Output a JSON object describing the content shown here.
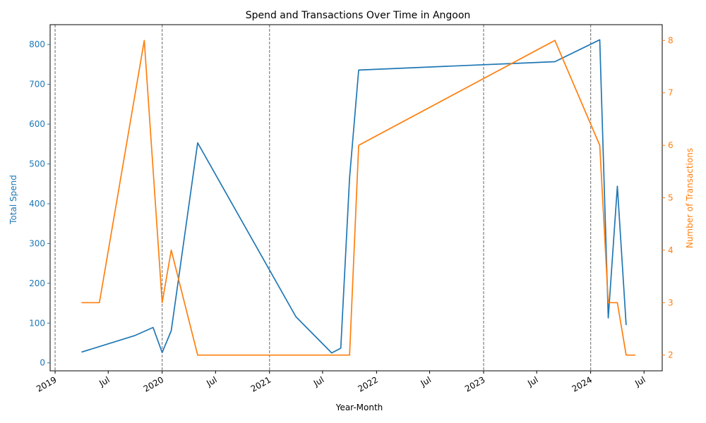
{
  "chart_data": {
    "type": "line",
    "title": "Spend and Transactions Over Time in Angoon",
    "xlabel": "Year-Month",
    "ylabel_left": "Total Spend",
    "ylabel_right": "Number of Transactions",
    "xlim": [
      "2018-12-15",
      "2024-09-01"
    ],
    "ylim_left": [
      -20,
      850
    ],
    "ylim_right": [
      1.7,
      8.3
    ],
    "yticks_left": [
      0,
      100,
      200,
      300,
      400,
      500,
      600,
      700,
      800
    ],
    "yticks_right": [
      2,
      3,
      4,
      5,
      6,
      7,
      8
    ],
    "x_ticks": [
      {
        "date": "2019-01-01",
        "label": "2019"
      },
      {
        "date": "2019-07-01",
        "label": "Jul"
      },
      {
        "date": "2020-01-01",
        "label": "2020"
      },
      {
        "date": "2020-07-01",
        "label": "Jul"
      },
      {
        "date": "2021-01-01",
        "label": "2021"
      },
      {
        "date": "2021-07-01",
        "label": "Jul"
      },
      {
        "date": "2022-01-01",
        "label": "2022"
      },
      {
        "date": "2022-07-01",
        "label": "Jul"
      },
      {
        "date": "2023-01-01",
        "label": "2023"
      },
      {
        "date": "2023-07-01",
        "label": "Jul"
      },
      {
        "date": "2024-01-01",
        "label": "2024"
      },
      {
        "date": "2024-07-01",
        "label": "Jul"
      }
    ],
    "year_lines": [
      "2019-01-01",
      "2020-01-01",
      "2021-01-01",
      "2023-01-01",
      "2024-01-01"
    ],
    "grid": false,
    "colors": {
      "spend": "#1f77b4",
      "transactions": "#ff7f0e",
      "year_line": "#808080"
    },
    "series": [
      {
        "axis": "left",
        "x": [
          "2019-04-01",
          "2019-10-01",
          "2019-12-01",
          "2020-01-01",
          "2020-02-01",
          "2020-05-01",
          "2021-04-01",
          "2021-08-01",
          "2021-09-01",
          "2021-10-01",
          "2021-11-01",
          "2023-09-01",
          "2024-02-01",
          "2024-03-01",
          "2024-04-01",
          "2024-05-01"
        ],
        "values": [
          27,
          69,
          89,
          26,
          81,
          553,
          116,
          25,
          37,
          465,
          736,
          757,
          812,
          113,
          444,
          95
        ]
      },
      {
        "axis": "right",
        "x": [
          "2019-04-01",
          "2019-06-01",
          "2019-11-01",
          "2020-01-01",
          "2020-02-01",
          "2020-05-01",
          "2021-10-01",
          "2021-11-01",
          "2023-09-01",
          "2024-02-01",
          "2024-03-01",
          "2024-04-01",
          "2024-05-01",
          "2024-06-01"
        ],
        "values": [
          3,
          3,
          8,
          3,
          4,
          2,
          2,
          6,
          8,
          6,
          3,
          3,
          2,
          2
        ]
      }
    ]
  }
}
